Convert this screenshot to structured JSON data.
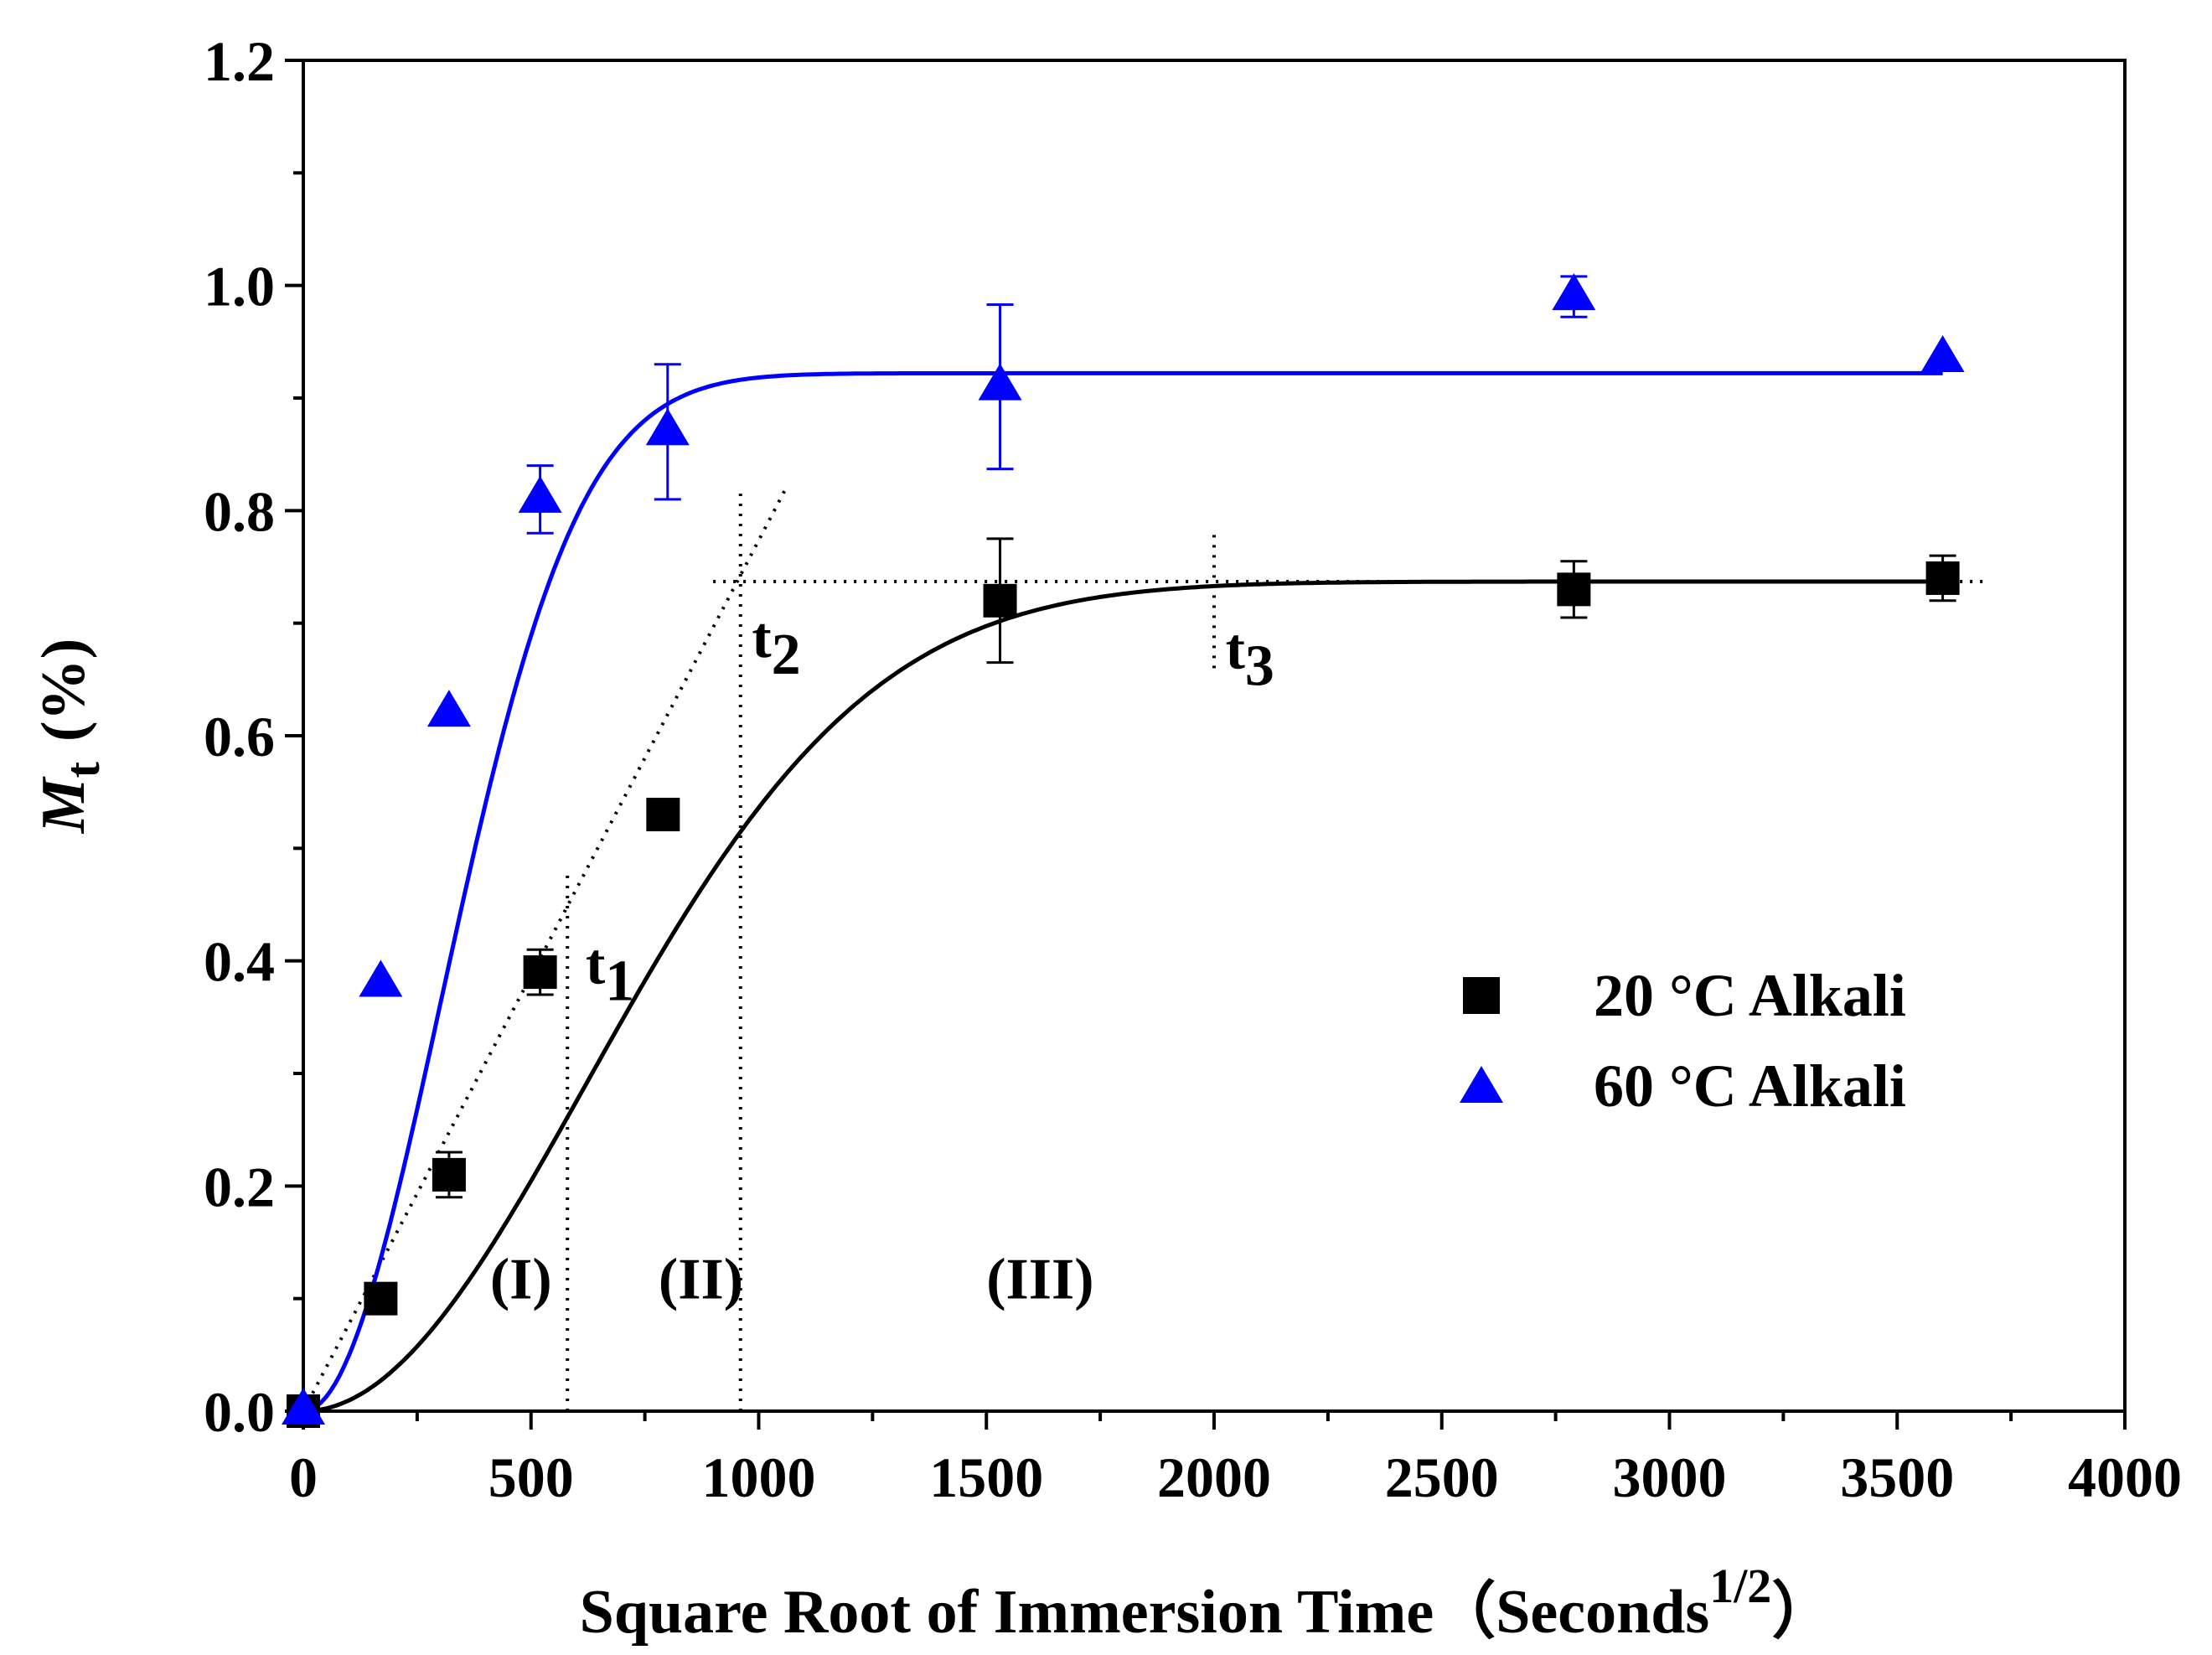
{
  "chart_data": {
    "type": "scatter",
    "title": "",
    "xlabel": "Square Root of Immersion Time（Seconds",
    "xlabel_superscript": "1/2",
    "xlabel_close": "）",
    "ylabel_main": "M",
    "ylabel_sub": "t",
    "ylabel_unit": "(%)",
    "xlim": [
      0,
      4000
    ],
    "ylim": [
      0,
      1.2
    ],
    "x_ticks": [
      0,
      500,
      1000,
      1500,
      2000,
      2500,
      3000,
      3500,
      4000
    ],
    "x_tick_labels": [
      "0",
      "500",
      "1000",
      "1500",
      "2000",
      "2500",
      "3000",
      "3500",
      "4000"
    ],
    "y_ticks": [
      0,
      0.2,
      0.4,
      0.6,
      0.8,
      1.0,
      1.2
    ],
    "y_tick_labels": [
      "0.0",
      "0.2",
      "0.4",
      "0.6",
      "0.8",
      "1.0",
      "1.2"
    ],
    "grid": false,
    "legend_position": "center-right",
    "series": [
      {
        "name": "20 °C Alkali",
        "marker": "square",
        "color": "#000000",
        "x": [
          0,
          170,
          320,
          520,
          790,
          1530,
          2790,
          3600
        ],
        "y": [
          0,
          0.1,
          0.21,
          0.39,
          0.53,
          0.72,
          0.73,
          0.74
        ],
        "err": [
          0,
          0,
          0.02,
          0.02,
          0,
          0.055,
          0.025,
          0.02
        ],
        "fit": {
          "model": "saturation",
          "m_inf": 0.737,
          "k": 1.3e-06,
          "p": 2.0
        }
      },
      {
        "name": "60 °C Alkali",
        "marker": "triangle",
        "color": "#0000ff",
        "x": [
          0,
          170,
          320,
          520,
          800,
          1530,
          2790,
          3600
        ],
        "y": [
          0,
          0.38,
          0.62,
          0.81,
          0.87,
          0.91,
          0.99,
          0.935
        ],
        "err": [
          0,
          0,
          0,
          0.03,
          0.06,
          0.073,
          0.018,
          0
        ],
        "fit": {
          "model": "saturation",
          "m_inf": 0.922,
          "k": 5.5e-06,
          "p": 2.0
        }
      }
    ],
    "reference_lines": {
      "slope_start": [
        0,
        0
      ],
      "slope_end": [
        1060,
        0.82
      ],
      "plateau_y": 0.737,
      "plateau_x_range": [
        900,
        3700
      ],
      "t1": {
        "x": 580,
        "y_range": [
          0,
          0.48
        ]
      },
      "t2": {
        "x": 960,
        "y_range": [
          0,
          0.815
        ]
      },
      "t3": {
        "x": 2000,
        "y_range": [
          0.66,
          0.785
        ]
      }
    },
    "annotations": [
      {
        "text": "t",
        "sub": "1",
        "x": 620,
        "y": 0.38
      },
      {
        "text": "t",
        "sub": "2",
        "x": 985,
        "y": 0.67
      },
      {
        "text": "t",
        "sub": "3",
        "x": 2025,
        "y": 0.66
      },
      {
        "text": "(I)",
        "x": 410,
        "y": 0.1
      },
      {
        "text": "(II)",
        "x": 780,
        "y": 0.1
      },
      {
        "text": "(III)",
        "x": 1500,
        "y": 0.1
      }
    ]
  }
}
